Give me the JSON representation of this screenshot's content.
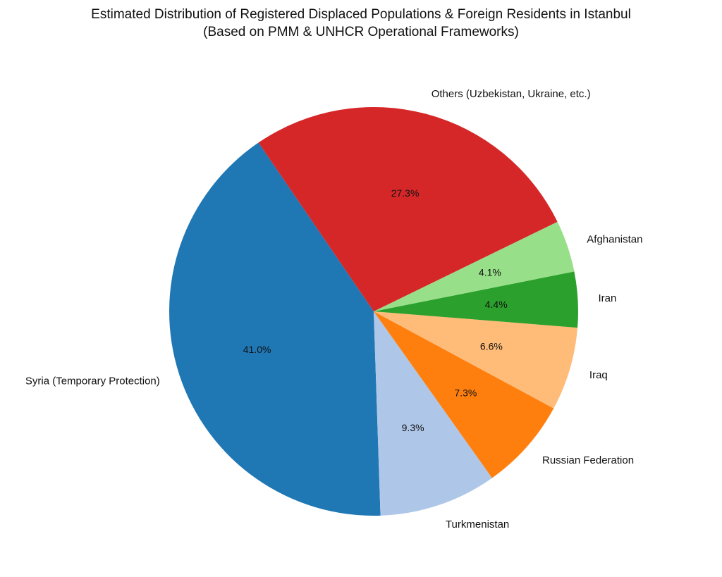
{
  "chart_data": {
    "type": "pie",
    "title": "Estimated Distribution of Registered Displaced Populations & Foreign Residents in Istanbul",
    "subtitle": "(Based on PMM & UNHCR Operational Frameworks)",
    "start_angle_deg": 124.3,
    "direction": "counterclockwise",
    "legend": "none",
    "slices": [
      {
        "label": "Syria (Temporary Protection)",
        "value": 41.0,
        "pct_label": "41.0%",
        "color": "#1f77b4"
      },
      {
        "label": "Turkmenistan",
        "value": 9.3,
        "pct_label": "9.3%",
        "color": "#aec7e8"
      },
      {
        "label": "Russian Federation",
        "value": 7.3,
        "pct_label": "7.3%",
        "color": "#ff7f0e"
      },
      {
        "label": "Iraq",
        "value": 6.6,
        "pct_label": "6.6%",
        "color": "#ffbb78"
      },
      {
        "label": "Iran",
        "value": 4.4,
        "pct_label": "4.4%",
        "color": "#2ca02c"
      },
      {
        "label": "Afghanistan",
        "value": 4.1,
        "pct_label": "4.1%",
        "color": "#98df8a"
      },
      {
        "label": "Others (Uzbekistan, Ukraine, etc.)",
        "value": 27.3,
        "pct_label": "27.3%",
        "color": "#d62728"
      }
    ]
  }
}
